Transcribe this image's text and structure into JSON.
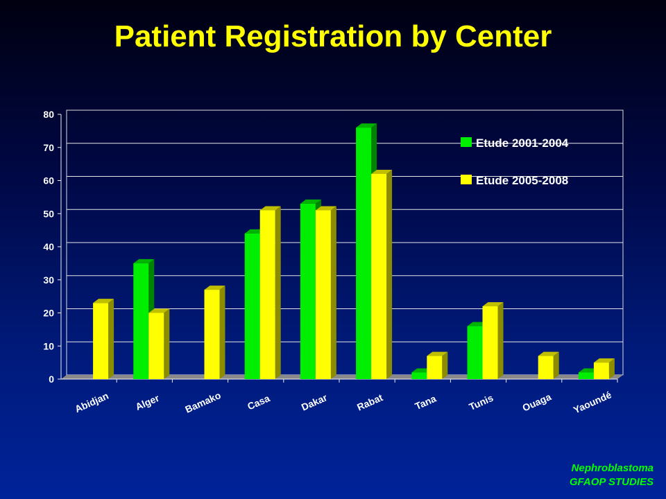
{
  "title": "Patient Registration by Center",
  "footer": {
    "line1": "Nephroblastoma",
    "line2": "GFAOP STUDIES"
  },
  "colors": {
    "series1": "#00ee00",
    "series2": "#ffff00",
    "text": "#ffffff",
    "title": "#ffff00",
    "footer": "#00ff00"
  },
  "chart_data": {
    "type": "bar",
    "title": "Patient Registration by Center",
    "xlabel": "",
    "ylabel": "",
    "ylim": [
      0,
      80
    ],
    "yticks": [
      0,
      10,
      20,
      30,
      40,
      50,
      60,
      70,
      80
    ],
    "grid": true,
    "legend_position": "top-right",
    "categories": [
      "Abidjan",
      "Alger",
      "Bamako",
      "Casa",
      "Dakar",
      "Rabat",
      "Tana",
      "Tunis",
      "Ouaga",
      "Yaoundé"
    ],
    "series": [
      {
        "name": "Etude 2001-2004",
        "color": "#00ee00",
        "values": [
          0,
          35,
          0,
          44,
          53,
          76,
          2,
          16,
          0,
          2
        ]
      },
      {
        "name": "Etude 2005-2008",
        "color": "#ffff00",
        "values": [
          23,
          20,
          27,
          51,
          51,
          62,
          7,
          22,
          7,
          5
        ]
      }
    ]
  }
}
